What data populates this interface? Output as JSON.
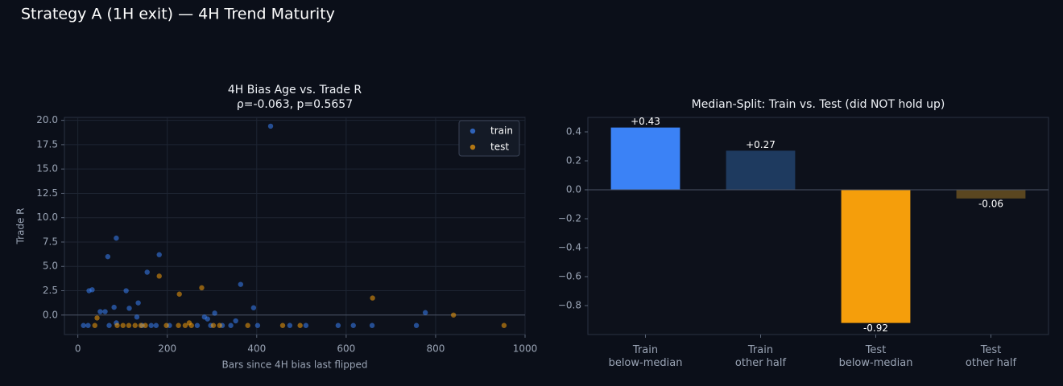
{
  "title": "Strategy A (1H exit) — 4H Trend Maturity",
  "chart_data": [
    {
      "type": "scatter",
      "title": "4H Bias Age vs. Trade R",
      "subtitle": "ρ=-0.063, p=0.5657",
      "x_label": "Bars since 4H bias last flipped",
      "y_label": "Trade R",
      "xlim": [
        -30,
        1000
      ],
      "xticks": [
        0,
        200,
        400,
        600,
        800,
        1000
      ],
      "ylim": [
        -2,
        20.3
      ],
      "yticks": [
        {
          "value": 0,
          "label": "0.0"
        },
        2.5,
        {
          "value": 5,
          "label": "5.0"
        },
        7.5,
        {
          "value": 10,
          "label": "10.0"
        },
        12.5,
        {
          "value": 15,
          "label": "15.0"
        },
        17.5,
        {
          "value": 20,
          "label": "20.0"
        }
      ],
      "grid": true,
      "legend": "upper right",
      "series": [
        {
          "name": "train",
          "color": "#3b82f6",
          "x": [
            12.6,
            23,
            25,
            32,
            50,
            61,
            70,
            81,
            86,
            67,
            86,
            108,
            115,
            132,
            135,
            144,
            155,
            164,
            175,
            182,
            205,
            267,
            283,
            290,
            297,
            306,
            323,
            342,
            353,
            364,
            393,
            402,
            431,
            474,
            510,
            582,
            616,
            658,
            757,
            777
          ],
          "values": [
            -1.07,
            -1.07,
            2.5,
            2.6,
            0.35,
            0.35,
            -1.07,
            0.8,
            7.9,
            6.0,
            -0.8,
            2.5,
            0.7,
            -0.2,
            1.25,
            -1.07,
            4.4,
            -1.07,
            -1.07,
            6.2,
            -1.07,
            -1.07,
            -0.2,
            -0.4,
            -1.07,
            0.2,
            -1.07,
            -1.07,
            -0.6,
            3.15,
            0.75,
            -1.07,
            19.4,
            -1.07,
            -1.07,
            -1.07,
            -1.07,
            -1.07,
            -1.07,
            0.25
          ]
        },
        {
          "name": "test",
          "color": "#f59e0b",
          "x": [
            38,
            43,
            88,
            101,
            114,
            128,
            141,
            151,
            182,
            198,
            225,
            227,
            240,
            249,
            254,
            277,
            303,
            317,
            380,
            458,
            497,
            659,
            840,
            953
          ],
          "values": [
            -1.07,
            -0.3,
            -1.07,
            -1.07,
            -1.07,
            -1.07,
            -1.07,
            -1.07,
            4.0,
            -1.07,
            -1.07,
            2.15,
            -1.07,
            -0.8,
            -1.07,
            2.8,
            -1.07,
            -1.07,
            -1.07,
            -1.07,
            -1.07,
            1.75,
            0.0,
            -1.07
          ]
        }
      ]
    },
    {
      "type": "bar",
      "title": "Median-Split: Train vs. Test (did NOT hold up)",
      "categories": [
        "Train\nbelow-median",
        "Train\nother half",
        "Test\nbelow-median",
        "Test\nother half"
      ],
      "values": [
        0.43,
        0.27,
        -0.92,
        -0.06
      ],
      "value_labels": [
        "+0.43",
        "+0.27",
        "-0.92",
        "-0.06"
      ],
      "colors": [
        "#3b82f6",
        "#1e3a5f",
        "#f59e0b",
        "#5a4620"
      ],
      "ylim": [
        -1.0,
        0.5
      ],
      "yticks": [
        {
          "value": -0.8,
          "label": "−0.8"
        },
        {
          "value": -0.6,
          "label": "−0.6"
        },
        {
          "value": -0.4,
          "label": "−0.4"
        },
        {
          "value": -0.2,
          "label": "−0.2"
        },
        {
          "value": 0,
          "label": "0.0"
        },
        0.2,
        0.4
      ],
      "grid": false
    }
  ]
}
